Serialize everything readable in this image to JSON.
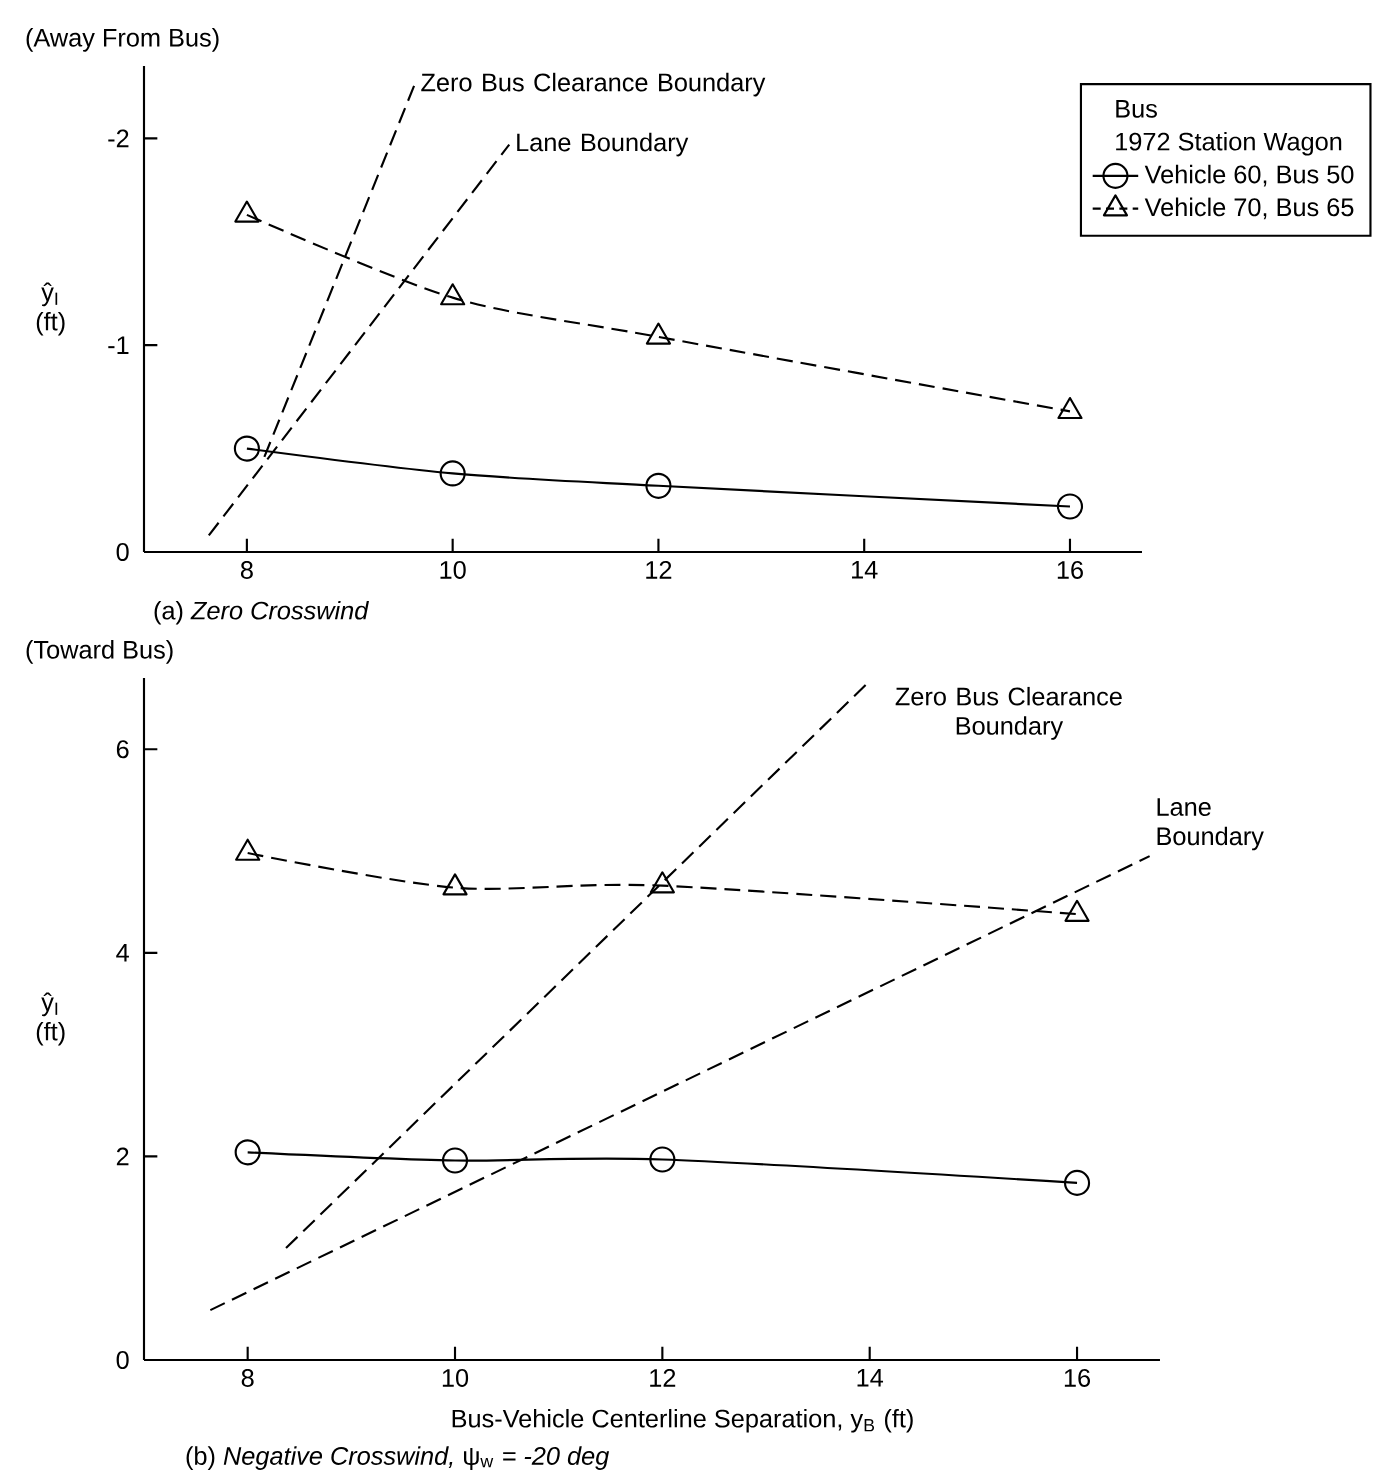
{
  "chart_data": [
    {
      "type": "line",
      "title": "(a) *Zero Crosswind*",
      "ylabel": "ŷ$_{I}$ (ft)",
      "legend_title": "Bus",
      "annotations": [
        "(Away From Bus)",
        "1972 Station Wagon"
      ],
      "xlim": [
        7,
        16.7
      ],
      "ylim": [
        0,
        -2.35
      ],
      "xticks": [
        8,
        10,
        12,
        14,
        16
      ],
      "yticks": [
        0,
        -1,
        -2
      ],
      "legend": "top right",
      "series": [
        {
          "name": "Vehicle 60, Bus 50",
          "color": "#000000",
          "x": [
            8,
            10,
            12,
            16
          ],
          "values": [
            -0.5,
            -0.38,
            -0.32,
            -0.22
          ],
          "marker": "circle",
          "line_style": "solid"
        },
        {
          "name": "Vehicle 70, Bus 65",
          "color": "#000000",
          "x": [
            8,
            10,
            12,
            16
          ],
          "values": [
            -1.63,
            -1.23,
            -1.04,
            -0.68
          ],
          "marker": "triangle",
          "line_style": "dashed"
        },
        {
          "name": "Zero Bus Clearance Boundary",
          "color": "#000000",
          "x": [
            8.17,
            9.63
          ],
          "values": [
            -0.46,
            -2.26
          ],
          "marker": "none",
          "line_style": "dashed"
        },
        {
          "name": "Lane Boundary",
          "color": "#000000",
          "x": [
            7.63,
            10.55
          ],
          "values": [
            -0.08,
            -1.97
          ],
          "marker": "none",
          "line_style": "dashed"
        }
      ]
    },
    {
      "type": "line",
      "title": "(b) *Negative Crosswind,* ψ$_{w}$ *= -20 deg*",
      "xlabel": "Bus-Vehicle Centerline Separation, y$_{B}$ (ft)",
      "ylabel": "ŷ$_{I}$ (ft)",
      "annotations": [
        "(Toward Bus)"
      ],
      "xlim": [
        7,
        16.8
      ],
      "ylim": [
        0,
        6.7
      ],
      "xticks": [
        8,
        10,
        12,
        14,
        16
      ],
      "yticks": [
        0,
        2,
        4,
        6
      ],
      "series": [
        {
          "color": "#000000",
          "x": [
            8,
            10,
            12,
            16
          ],
          "values": [
            2.04,
            1.96,
            1.97,
            1.74
          ],
          "marker": "circle",
          "line_style": "solid"
        },
        {
          "color": "#000000",
          "x": [
            8,
            10,
            12,
            16
          ],
          "values": [
            4.98,
            4.64,
            4.66,
            4.38
          ],
          "marker": "triangle",
          "line_style": "dashed"
        },
        {
          "name": "Zero Bus Clearance Boundary",
          "color": "#000000",
          "x": [
            8.37,
            14.0
          ],
          "values": [
            1.1,
            6.67
          ],
          "marker": "none",
          "line_style": "dashed"
        },
        {
          "name": "Lane Boundary",
          "color": "#000000",
          "x": [
            7.64,
            16.7
          ],
          "values": [
            0.49,
            4.95
          ],
          "marker": "none",
          "line_style": "dashed"
        }
      ]
    }
  ]
}
